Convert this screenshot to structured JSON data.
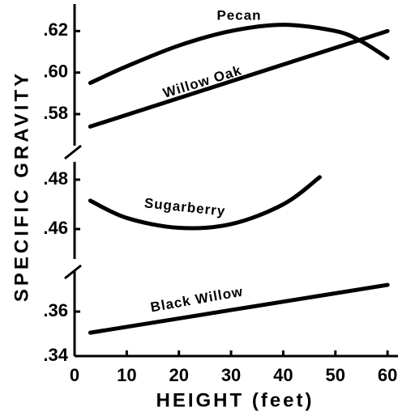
{
  "chart_data": [
    {
      "type": "line",
      "ylabel": "SPECIFIC GRAVITY",
      "ylim": [
        0.5648,
        0.633
      ],
      "yticks": [
        {
          "value": 0.58,
          "label": ".58"
        },
        {
          "value": 0.6,
          "label": ".60"
        },
        {
          "value": 0.62,
          "label": ".62"
        }
      ],
      "series": [
        {
          "name": "Pecan",
          "color": "#000000",
          "x": [
            3,
            10,
            20,
            30,
            40,
            50,
            55,
            60
          ],
          "values": [
            0.595,
            0.603,
            0.613,
            0.62,
            0.623,
            0.62,
            0.615,
            0.607
          ]
        },
        {
          "name": "Willow Oak",
          "color": "#000000",
          "x": [
            3,
            60
          ],
          "values": [
            0.574,
            0.62
          ]
        }
      ]
    },
    {
      "type": "line",
      "ylim": [
        0.4479,
        0.4872
      ],
      "yticks": [
        {
          "value": 0.46,
          "label": ".46"
        },
        {
          "value": 0.48,
          "label": ".48"
        }
      ],
      "series": [
        {
          "name": "Sugarberry",
          "color": "#000000",
          "x": [
            3,
            10,
            20,
            30,
            40,
            47
          ],
          "values": [
            0.4715,
            0.4645,
            0.4605,
            0.462,
            0.47,
            0.481
          ]
        }
      ]
    },
    {
      "type": "line",
      "xlabel": "HEIGHT (feet)",
      "xlim": [
        0,
        62
      ],
      "xticks": [
        0,
        10,
        20,
        30,
        40,
        50,
        60
      ],
      "ylim": [
        0.34,
        0.3782
      ],
      "yticks": [
        {
          "value": 0.34,
          "label": ".34"
        },
        {
          "value": 0.36,
          "label": ".36"
        }
      ],
      "series": [
        {
          "name": "Black Willow",
          "color": "#000000",
          "x": [
            3,
            60
          ],
          "values": [
            0.3505,
            0.372
          ]
        }
      ]
    }
  ]
}
